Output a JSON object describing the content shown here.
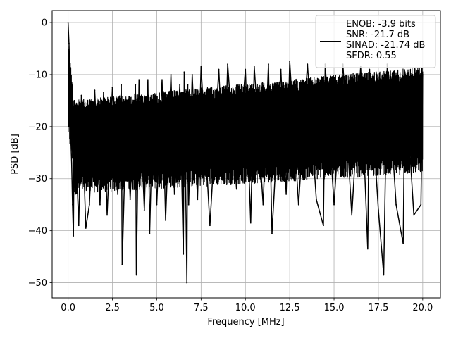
{
  "chart_data": {
    "type": "line",
    "title": "",
    "xlabel": "Frequency [MHz]",
    "ylabel": "PSD [dB]",
    "xlim": [
      -0.9,
      21.0
    ],
    "ylim": [
      -52.9,
      2.3
    ],
    "xticks": [
      0.0,
      2.5,
      5.0,
      7.5,
      10.0,
      12.5,
      15.0,
      17.5,
      20.0
    ],
    "xtick_labels": [
      "0.0",
      "2.5",
      "5.0",
      "7.5",
      "10.0",
      "12.5",
      "15.0",
      "17.5",
      "20.0"
    ],
    "yticks": [
      0,
      -10,
      -20,
      -30,
      -40,
      -50
    ],
    "ytick_labels": [
      "0",
      "−10",
      "−20",
      "−30",
      "−40",
      "−50"
    ],
    "grid": true,
    "legend_position": "top-right",
    "legend_lines": [
      "ENOB: -3.9 bits",
      "SNR: -21.7 dB",
      "SINAD: -21.74 dB",
      "SFDR: 0.55"
    ],
    "series": [
      {
        "color": "#000000",
        "note_peaks": true,
        "x": [
          0.0,
          0.05,
          0.1,
          0.15,
          0.2,
          0.25,
          0.3,
          0.35,
          0.4,
          0.5,
          0.6,
          0.75,
          1.0,
          1.2,
          1.5,
          1.8,
          2.0,
          2.2,
          2.5,
          2.8,
          3.0,
          3.05,
          3.3,
          3.5,
          3.8,
          3.85,
          4.0,
          4.3,
          4.5,
          4.6,
          4.8,
          5.0,
          5.3,
          5.5,
          5.8,
          6.0,
          6.3,
          6.5,
          6.55,
          6.7,
          6.75,
          6.8,
          7.0,
          7.3,
          7.5,
          8.0,
          8.5,
          8.8,
          9.0,
          9.5,
          10.0,
          10.3,
          10.5,
          11.0,
          11.3,
          11.5,
          12.0,
          12.3,
          12.5,
          13.0,
          13.5,
          14.0,
          14.4,
          14.5,
          15.0,
          15.5,
          16.0,
          16.5,
          16.9,
          17.0,
          17.5,
          17.8,
          18.0,
          18.5,
          18.9,
          19.0,
          19.5,
          19.9,
          20.0
        ],
        "y": [
          0.0,
          -4.0,
          -9.5,
          -22.0,
          -27.0,
          -35.0,
          -41.0,
          -15.0,
          -33.0,
          -30.0,
          -39.0,
          -14.0,
          -39.5,
          -35.0,
          -13.0,
          -35.0,
          -13.5,
          -37.0,
          -12.5,
          -33.0,
          -12.0,
          -46.5,
          -15.0,
          -34.0,
          -12.0,
          -48.5,
          -11.0,
          -36.0,
          -11.0,
          -40.5,
          -14.0,
          -35.0,
          -11.0,
          -38.0,
          -10.0,
          -33.0,
          -12.0,
          -44.5,
          -9.5,
          -50.0,
          -12.0,
          -35.0,
          -10.0,
          -34.0,
          -8.5,
          -39.0,
          -9.0,
          -31.0,
          -8.0,
          -32.0,
          -9.0,
          -38.5,
          -8.5,
          -35.0,
          -8.0,
          -40.5,
          -9.0,
          -33.0,
          -7.5,
          -35.0,
          -8.0,
          -34.0,
          -39.0,
          -8.0,
          -35.0,
          -8.0,
          -37.0,
          -8.5,
          -43.5,
          -9.0,
          -36.0,
          -48.5,
          -8.0,
          -35.0,
          -42.5,
          -9.5,
          -37.0,
          -35.0,
          -10.0
        ]
      }
    ]
  }
}
